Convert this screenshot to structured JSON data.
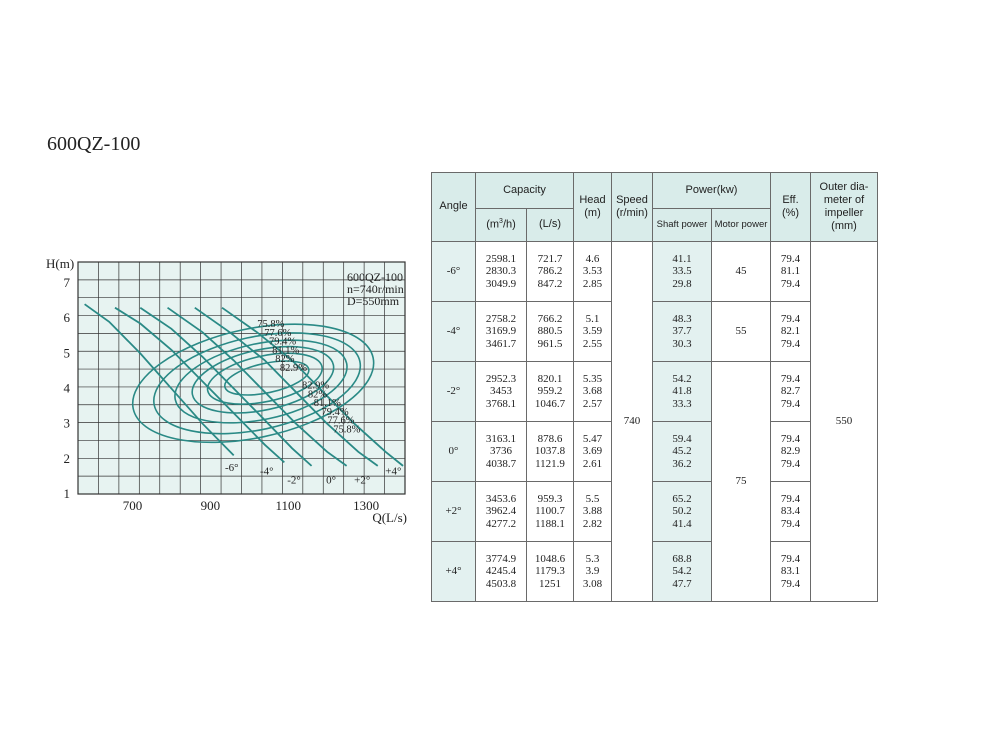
{
  "title": "600QZ-100",
  "chart_data": {
    "type": "line",
    "legend": [
      "600QZ-100",
      "n=740r/min",
      "D=550mm"
    ],
    "xlabel": "Q(L/s)",
    "ylabel": "H(m)",
    "xlim": [
      560,
      1400
    ],
    "ylim": [
      1,
      7.6
    ],
    "x_ticks": [
      "700",
      "900",
      "1100",
      "1300"
    ],
    "y_ticks": [
      "1",
      "2",
      "3",
      "4",
      "5",
      "6",
      "7"
    ],
    "grid": true,
    "series": [
      {
        "name": "-6°",
        "x": [
          577,
          640,
          720,
          800,
          880,
          960
        ],
        "y": [
          6.4,
          5.9,
          5.0,
          4.0,
          3.0,
          2.1
        ]
      },
      {
        "name": "-4°",
        "x": [
          655,
          720,
          800,
          880,
          960,
          1040,
          1090
        ],
        "y": [
          6.3,
          5.85,
          5.1,
          4.2,
          3.3,
          2.4,
          1.9
        ]
      },
      {
        "name": "-2°",
        "x": [
          720,
          800,
          880,
          960,
          1040,
          1110,
          1160
        ],
        "y": [
          6.3,
          5.7,
          4.9,
          4.0,
          3.1,
          2.3,
          1.8
        ]
      },
      {
        "name": "0°",
        "x": [
          790,
          880,
          960,
          1040,
          1120,
          1200,
          1250
        ],
        "y": [
          6.3,
          5.6,
          4.8,
          3.9,
          3.0,
          2.2,
          1.8
        ]
      },
      {
        "name": "+2°",
        "x": [
          860,
          950,
          1040,
          1120,
          1200,
          1280,
          1330
        ],
        "y": [
          6.3,
          5.6,
          4.8,
          3.9,
          3.0,
          2.2,
          1.8
        ]
      },
      {
        "name": "+4°",
        "x": [
          930,
          1020,
          1110,
          1190,
          1270,
          1350,
          1395
        ],
        "y": [
          6.3,
          5.6,
          4.8,
          3.9,
          3.0,
          2.2,
          1.8
        ]
      }
    ],
    "efficiency_contours": [
      {
        "label": "75.8%",
        "q_center": 1010,
        "h_center": 4.15,
        "q_radius": 315,
        "h_radius": 1.55
      },
      {
        "label": "77.6%",
        "q_center": 1020,
        "h_center": 4.15,
        "q_radius": 270,
        "h_radius": 1.32
      },
      {
        "label": "79.4%",
        "q_center": 1030,
        "h_center": 4.2,
        "q_radius": 225,
        "h_radius": 1.08
      },
      {
        "label": "81.1%",
        "q_center": 1035,
        "h_center": 4.25,
        "q_radius": 185,
        "h_radius": 0.86
      },
      {
        "label": "82%",
        "q_center": 1040,
        "h_center": 4.28,
        "q_radius": 150,
        "h_radius": 0.65
      },
      {
        "label": "82.9%",
        "q_center": 1045,
        "h_center": 4.3,
        "q_radius": 110,
        "h_radius": 0.42
      }
    ],
    "contour_labels_right": [
      "82.9%",
      "82%",
      "81.1%",
      "79.4%",
      "77.6%",
      "75.8%"
    ]
  },
  "table": {
    "headers": {
      "angle": "Angle",
      "capacity": "Capacity",
      "capacity_m3h_pre": "(m",
      "capacity_m3h_sup": "3",
      "capacity_m3h_post": "/h)",
      "capacity_ls": "(L/s)",
      "head": "Head",
      "head_unit": "(m)",
      "speed": "Speed",
      "speed_unit": "(r/min)",
      "power": "Power(kw)",
      "shaft_power": "Shaft power",
      "motor_power": "Motor power",
      "eff": "Eff.",
      "eff_unit": "(%)",
      "outer_1": "Outer dia-",
      "outer_2": "meter of",
      "outer_3": "impeller",
      "outer_4": "(mm)"
    },
    "speed": "740",
    "outer_diameter": "550",
    "motor_power": [
      "45",
      "55",
      "75"
    ],
    "rows": [
      {
        "angle": "-6°",
        "cap_m3h": [
          "2598.1",
          "2830.3",
          "3049.9"
        ],
        "cap_ls": [
          "721.7",
          "786.2",
          "847.2"
        ],
        "head": [
          "4.6",
          "3.53",
          "2.85"
        ],
        "shaft": [
          "41.1",
          "33.5",
          "29.8"
        ],
        "eff": [
          "79.4",
          "81.1",
          "79.4"
        ]
      },
      {
        "angle": "-4°",
        "cap_m3h": [
          "2758.2",
          "3169.9",
          "3461.7"
        ],
        "cap_ls": [
          "766.2",
          "880.5",
          "961.5"
        ],
        "head": [
          "5.1",
          "3.59",
          "2.55"
        ],
        "shaft": [
          "48.3",
          "37.7",
          "30.3"
        ],
        "eff": [
          "79.4",
          "82.1",
          "79.4"
        ]
      },
      {
        "angle": "-2°",
        "cap_m3h": [
          "2952.3",
          "3453",
          "3768.1"
        ],
        "cap_ls": [
          "820.1",
          "959.2",
          "1046.7"
        ],
        "head": [
          "5.35",
          "3.68",
          "2.57"
        ],
        "shaft": [
          "54.2",
          "41.8",
          "33.3"
        ],
        "eff": [
          "79.4",
          "82.7",
          "79.4"
        ]
      },
      {
        "angle": "0°",
        "cap_m3h": [
          "3163.1",
          "3736",
          "4038.7"
        ],
        "cap_ls": [
          "878.6",
          "1037.8",
          "1121.9"
        ],
        "head": [
          "5.47",
          "3.69",
          "2.61"
        ],
        "shaft": [
          "59.4",
          "45.2",
          "36.2"
        ],
        "eff": [
          "79.4",
          "82.9",
          "79.4"
        ]
      },
      {
        "angle": "+2°",
        "cap_m3h": [
          "3453.6",
          "3962.4",
          "4277.2"
        ],
        "cap_ls": [
          "959.3",
          "1100.7",
          "1188.1"
        ],
        "head": [
          "5.5",
          "3.88",
          "2.82"
        ],
        "shaft": [
          "65.2",
          "50.2",
          "41.4"
        ],
        "eff": [
          "79.4",
          "83.4",
          "79.4"
        ]
      },
      {
        "angle": "+4°",
        "cap_m3h": [
          "3774.9",
          "4245.4",
          "4503.8"
        ],
        "cap_ls": [
          "1048.6",
          "1179.3",
          "1251"
        ],
        "head": [
          "5.3",
          "3.9",
          "3.08"
        ],
        "shaft": [
          "68.8",
          "54.2",
          "47.7"
        ],
        "eff": [
          "79.4",
          "83.1",
          "79.4"
        ]
      }
    ]
  },
  "colors": {
    "curve": "#2a8a86",
    "grid_bg": "#e7f3f1",
    "header_bg": "#d9ecea",
    "row_shade": "#e3f1f0",
    "grid_line": "#333333"
  }
}
